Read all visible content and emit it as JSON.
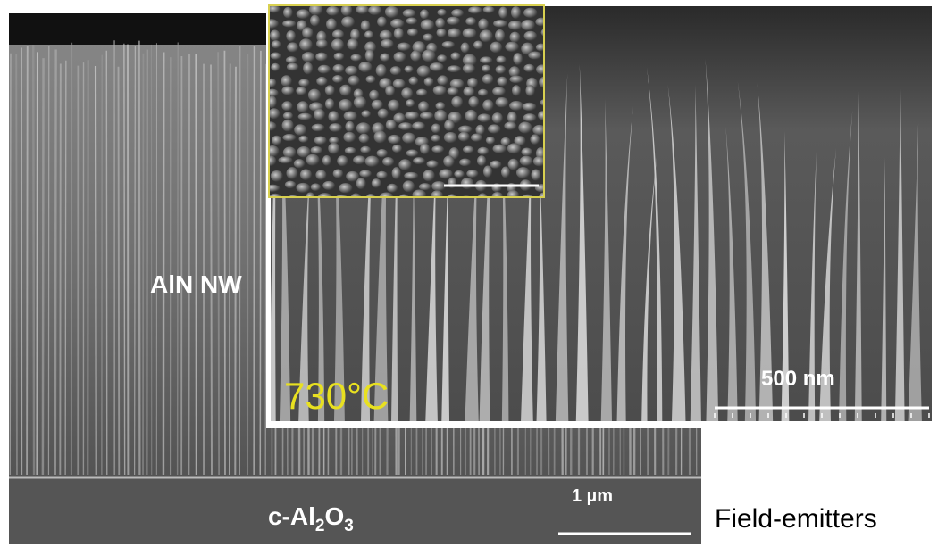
{
  "labels": {
    "nanowire": "AlN NW",
    "substrate": [
      "c-Al",
      "2",
      "O",
      "3"
    ],
    "back_scale": "1 µm",
    "temperature": "730°C",
    "front_scale": "500 nm",
    "caption": "Field-emitters"
  }
}
